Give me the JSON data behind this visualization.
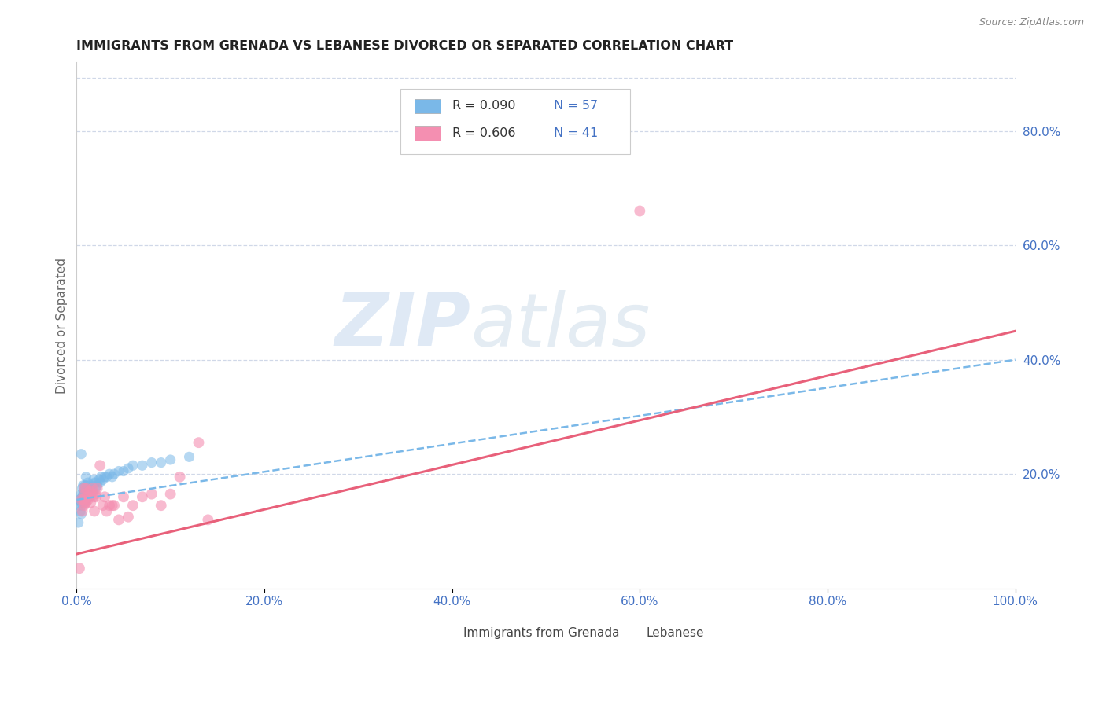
{
  "title": "IMMIGRANTS FROM GRENADA VS LEBANESE DIVORCED OR SEPARATED CORRELATION CHART",
  "source": "Source: ZipAtlas.com",
  "ylabel": "Divorced or Separated",
  "xlim": [
    0.0,
    1.0
  ],
  "ylim": [
    0.0,
    0.92
  ],
  "xticks": [
    0.0,
    0.2,
    0.4,
    0.6,
    0.8,
    1.0
  ],
  "xticklabels": [
    "0.0%",
    "20.0%",
    "40.0%",
    "60.0%",
    "80.0%",
    "100.0%"
  ],
  "yticks": [
    0.2,
    0.4,
    0.6,
    0.8
  ],
  "yticklabels": [
    "20.0%",
    "40.0%",
    "60.0%",
    "80.0%"
  ],
  "scatter_blue_x": [
    0.002,
    0.003,
    0.003,
    0.004,
    0.004,
    0.005,
    0.005,
    0.005,
    0.006,
    0.006,
    0.006,
    0.007,
    0.007,
    0.007,
    0.008,
    0.008,
    0.009,
    0.009,
    0.009,
    0.01,
    0.01,
    0.01,
    0.011,
    0.011,
    0.012,
    0.012,
    0.013,
    0.013,
    0.014,
    0.015,
    0.015,
    0.016,
    0.017,
    0.018,
    0.019,
    0.02,
    0.021,
    0.022,
    0.024,
    0.025,
    0.026,
    0.028,
    0.03,
    0.032,
    0.035,
    0.038,
    0.04,
    0.045,
    0.05,
    0.055,
    0.06,
    0.07,
    0.08,
    0.09,
    0.1,
    0.12,
    0.005
  ],
  "scatter_blue_y": [
    0.115,
    0.155,
    0.145,
    0.135,
    0.155,
    0.13,
    0.165,
    0.15,
    0.16,
    0.175,
    0.145,
    0.155,
    0.165,
    0.18,
    0.15,
    0.17,
    0.155,
    0.165,
    0.18,
    0.155,
    0.165,
    0.195,
    0.165,
    0.18,
    0.17,
    0.185,
    0.16,
    0.175,
    0.17,
    0.165,
    0.18,
    0.175,
    0.17,
    0.19,
    0.185,
    0.175,
    0.185,
    0.18,
    0.19,
    0.185,
    0.195,
    0.19,
    0.195,
    0.195,
    0.2,
    0.195,
    0.2,
    0.205,
    0.205,
    0.21,
    0.215,
    0.215,
    0.22,
    0.22,
    0.225,
    0.23,
    0.235
  ],
  "scatter_pink_x": [
    0.003,
    0.005,
    0.006,
    0.007,
    0.008,
    0.008,
    0.009,
    0.009,
    0.01,
    0.01,
    0.011,
    0.012,
    0.013,
    0.014,
    0.015,
    0.016,
    0.017,
    0.018,
    0.019,
    0.02,
    0.021,
    0.022,
    0.025,
    0.028,
    0.03,
    0.032,
    0.035,
    0.038,
    0.04,
    0.045,
    0.05,
    0.055,
    0.06,
    0.07,
    0.08,
    0.09,
    0.1,
    0.11,
    0.13,
    0.6,
    0.14
  ],
  "scatter_pink_y": [
    0.035,
    0.155,
    0.135,
    0.155,
    0.145,
    0.175,
    0.15,
    0.165,
    0.15,
    0.175,
    0.16,
    0.155,
    0.16,
    0.17,
    0.15,
    0.165,
    0.175,
    0.16,
    0.135,
    0.165,
    0.16,
    0.175,
    0.215,
    0.145,
    0.16,
    0.135,
    0.145,
    0.145,
    0.145,
    0.12,
    0.16,
    0.125,
    0.145,
    0.16,
    0.165,
    0.145,
    0.165,
    0.195,
    0.255,
    0.66,
    0.12
  ],
  "trendline_blue_y0": 0.155,
  "trendline_blue_y1": 0.4,
  "trendline_pink_y0": 0.06,
  "trendline_pink_y1": 0.45,
  "blue_dot_color": "#7ab8e8",
  "blue_line_color": "#7ab8e8",
  "pink_dot_color": "#f48fb1",
  "pink_line_color": "#e8607a",
  "watermark_zip": "ZIP",
  "watermark_atlas": "atlas",
  "grid_color": "#d0d8e8",
  "bg_color": "#ffffff",
  "title_color": "#222222",
  "source_color": "#888888",
  "tick_color": "#4472c4",
  "axis_label_color": "#666666",
  "legend_r1": "R = 0.090",
  "legend_n1": "N = 57",
  "legend_r2": "R = 0.606",
  "legend_n2": "N = 41"
}
